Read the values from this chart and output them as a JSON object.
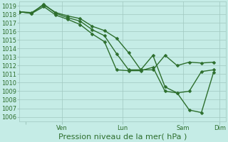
{
  "xlabel": "Pression niveau de la mer( hPa )",
  "bg_color": "#c5ece6",
  "grid_color": "#a0c8c0",
  "line_color": "#2d6e2d",
  "ylim": [
    1005.5,
    1019.5
  ],
  "yticks": [
    1006,
    1007,
    1008,
    1009,
    1010,
    1011,
    1012,
    1013,
    1014,
    1015,
    1016,
    1017,
    1018,
    1019
  ],
  "xlim": [
    0,
    17
  ],
  "xtick_positions": [
    0.5,
    3.5,
    8.5,
    13.5,
    16.5
  ],
  "xtick_labels": [
    "",
    "Ven",
    "Lun",
    "Sam",
    "Dim"
  ],
  "line1_x": [
    0,
    1,
    2,
    3,
    4,
    5,
    6,
    7,
    8,
    9,
    10,
    11,
    12,
    13,
    14,
    15,
    16
  ],
  "line1_y": [
    1018.3,
    1018.2,
    1019.1,
    1018.2,
    1017.8,
    1017.5,
    1016.6,
    1016.1,
    1015.2,
    1013.5,
    1011.5,
    1011.5,
    1013.2,
    1012.0,
    1012.4,
    1012.3,
    1012.4
  ],
  "line2_x": [
    0,
    1,
    2,
    3,
    4,
    5,
    6,
    7,
    8,
    9,
    10,
    11,
    12,
    13,
    14,
    15,
    16
  ],
  "line2_y": [
    1018.3,
    1018.1,
    1019.2,
    1018.1,
    1017.6,
    1017.2,
    1016.2,
    1015.5,
    1013.4,
    1011.5,
    1011.5,
    1013.2,
    1009.5,
    1008.8,
    1009.0,
    1011.3,
    1011.5
  ],
  "line3_x": [
    0,
    1,
    2,
    3,
    4,
    5,
    6,
    7,
    8,
    9,
    10,
    11,
    12,
    13,
    14,
    15,
    16
  ],
  "line3_y": [
    1018.3,
    1018.1,
    1018.9,
    1017.9,
    1017.4,
    1016.8,
    1015.7,
    1014.8,
    1011.5,
    1011.4,
    1011.4,
    1011.8,
    1009.0,
    1008.8,
    1006.8,
    1006.5,
    1011.2
  ],
  "marker": "D",
  "marker_size": 2.5,
  "linewidth": 1.0,
  "xlabel_fontsize": 8,
  "tick_fontsize": 6,
  "vline_positions": [
    3.5,
    8.5,
    13.5,
    16.5
  ]
}
